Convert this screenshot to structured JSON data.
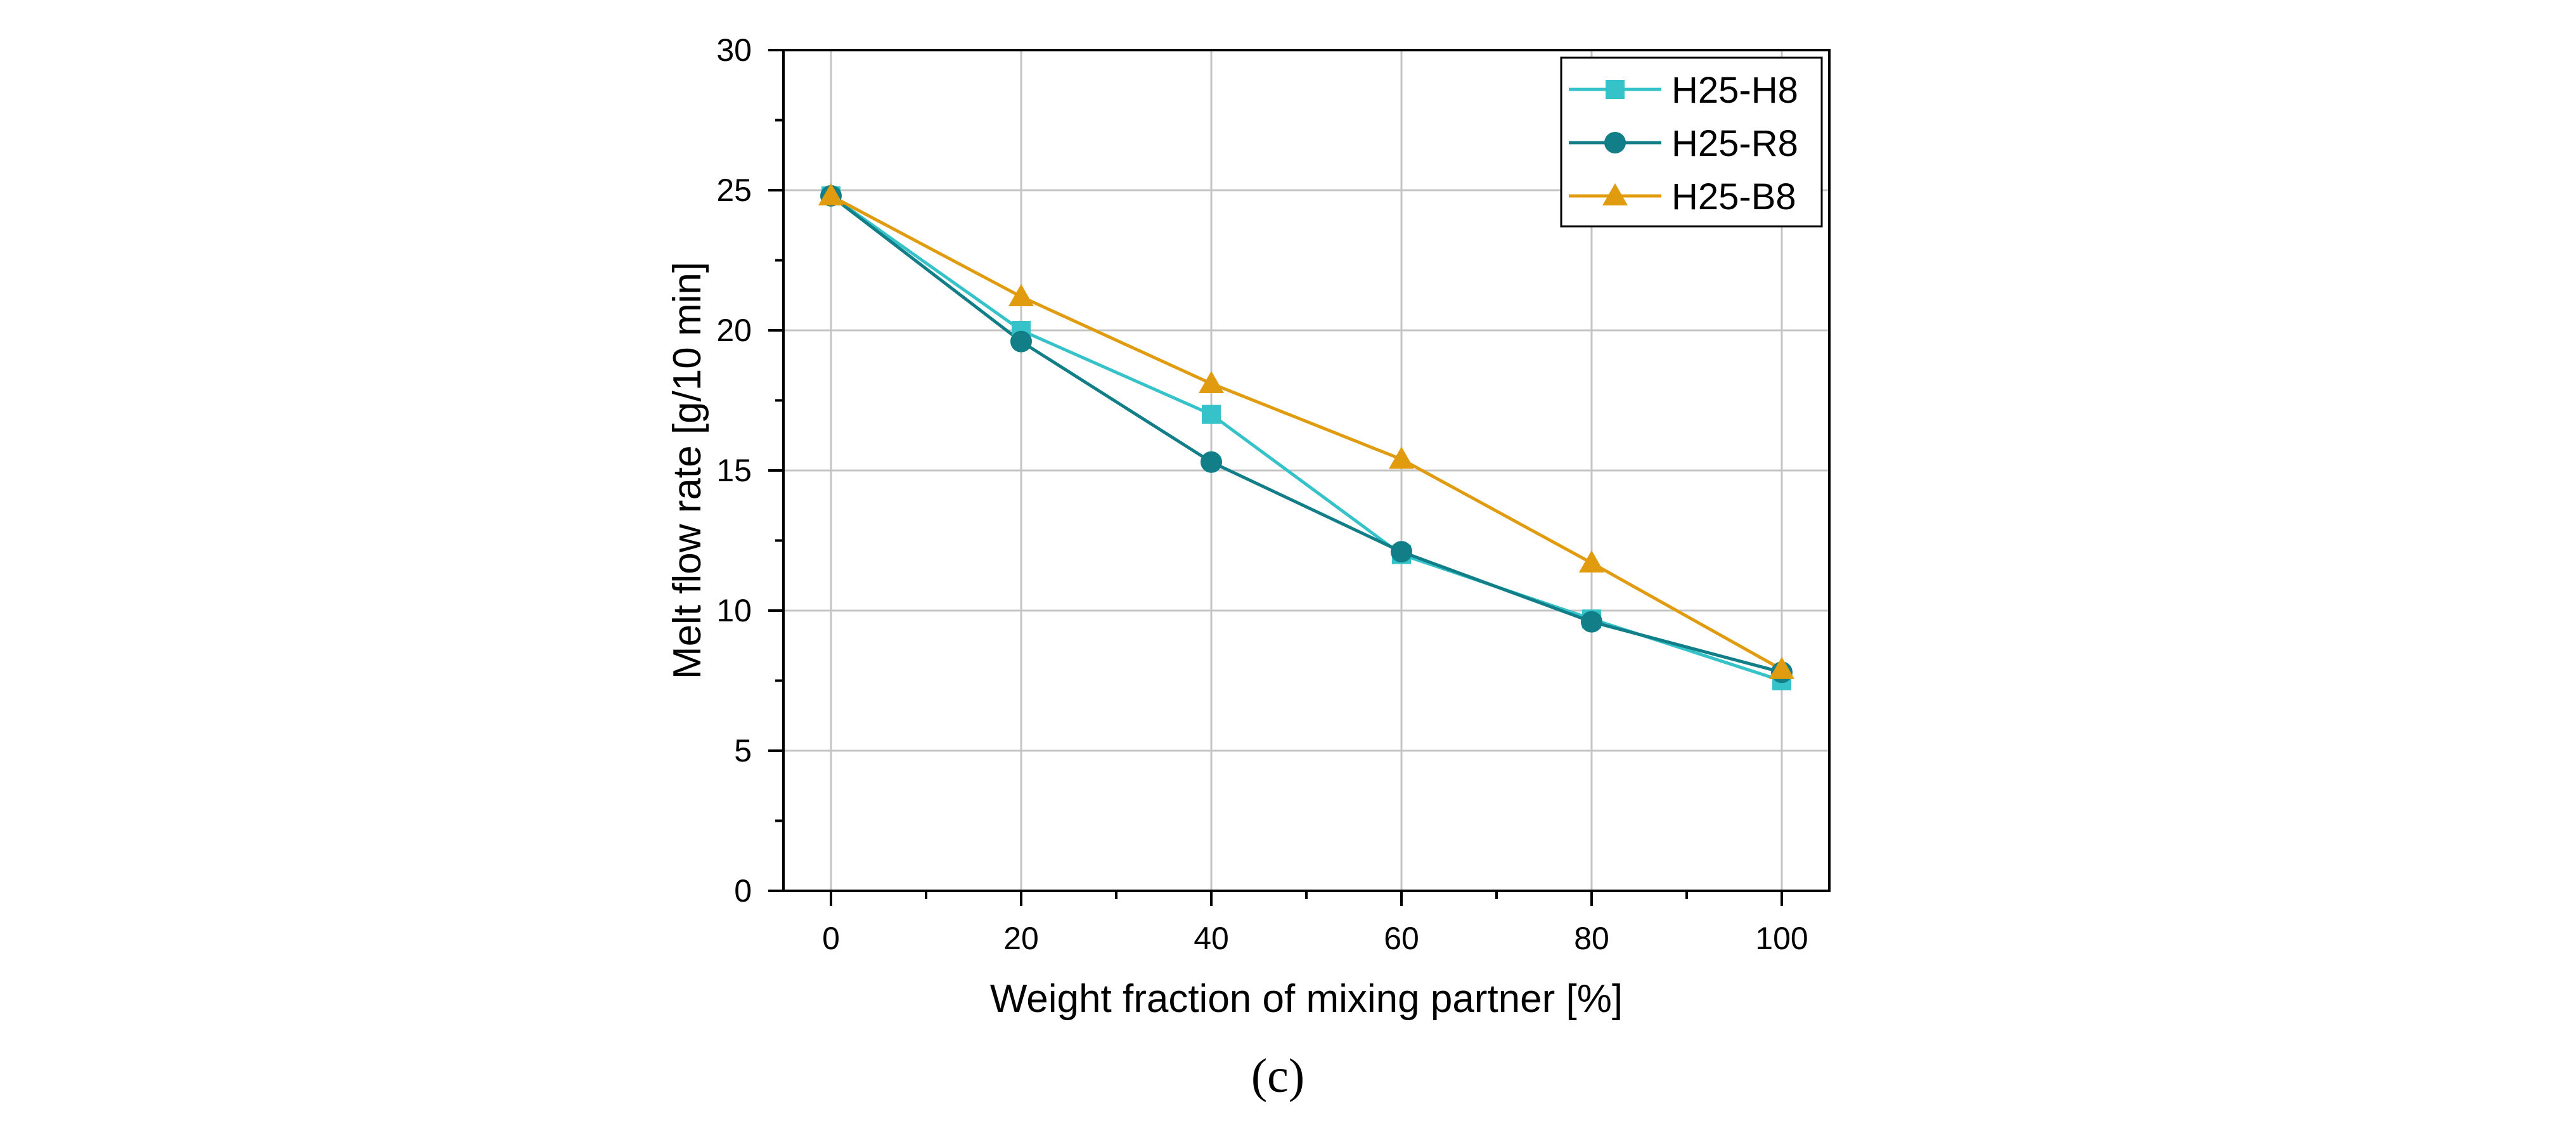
{
  "chart_data": {
    "type": "line",
    "panel_label": "(c)",
    "title": "",
    "xlabel": "Weight fraction of mixing partner [%]",
    "ylabel": "Melt flow rate [g/10 min]",
    "xlim": [
      -5,
      105
    ],
    "ylim": [
      0,
      30
    ],
    "x_ticks": [
      0,
      20,
      40,
      60,
      80,
      100
    ],
    "y_ticks": [
      0,
      5,
      10,
      15,
      20,
      25,
      30
    ],
    "x_tick_labels": [
      "0",
      "20",
      "40",
      "60",
      "80",
      "100"
    ],
    "y_tick_labels": [
      "0",
      "5",
      "10",
      "15",
      "20",
      "25",
      "30"
    ],
    "grid": true,
    "legend_position": "top-right",
    "x": [
      0,
      20,
      40,
      60,
      80,
      100
    ],
    "series": [
      {
        "name": "H25-H8",
        "color": "#36c2c9",
        "marker": "square",
        "values": [
          24.8,
          20.0,
          17.0,
          12.0,
          9.7,
          7.5
        ]
      },
      {
        "name": "H25-R8",
        "color": "#127e88",
        "marker": "circle",
        "values": [
          24.8,
          19.6,
          15.3,
          12.1,
          9.6,
          7.8
        ]
      },
      {
        "name": "H25-B8",
        "color": "#e09c0e",
        "marker": "triangle",
        "values": [
          24.8,
          21.2,
          18.1,
          15.4,
          11.7,
          7.9
        ]
      }
    ]
  }
}
